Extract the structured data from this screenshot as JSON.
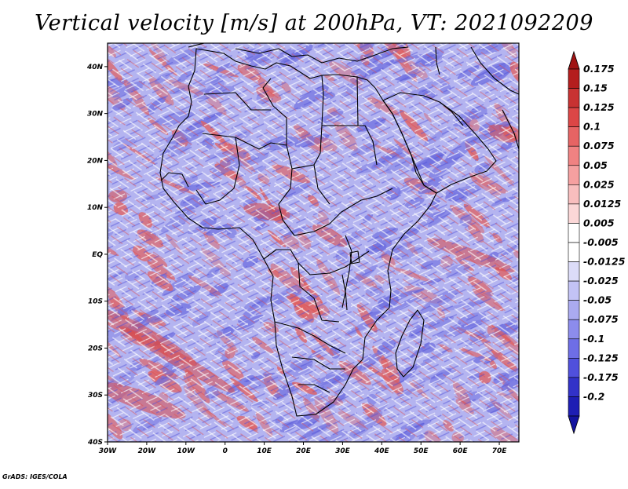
{
  "title": "Vertical velocity [m/s] at 200hPa, VT: 2021092209",
  "credit": "GrADS: IGES/COLA",
  "map": {
    "lon_range": [
      -30,
      75
    ],
    "lat_range": [
      -40,
      45
    ],
    "lat_ticks": [
      {
        "value": 40,
        "label": "40N"
      },
      {
        "value": 30,
        "label": "30N"
      },
      {
        "value": 20,
        "label": "20N"
      },
      {
        "value": 10,
        "label": "10N"
      },
      {
        "value": 0,
        "label": "EQ"
      },
      {
        "value": -10,
        "label": "10S"
      },
      {
        "value": -20,
        "label": "20S"
      },
      {
        "value": -30,
        "label": "30S"
      },
      {
        "value": -40,
        "label": "40S"
      }
    ],
    "lon_ticks": [
      {
        "value": -30,
        "label": "30W"
      },
      {
        "value": -20,
        "label": "20W"
      },
      {
        "value": -10,
        "label": "10W"
      },
      {
        "value": 0,
        "label": "0"
      },
      {
        "value": 10,
        "label": "10E"
      },
      {
        "value": 20,
        "label": "20E"
      },
      {
        "value": 30,
        "label": "30E"
      },
      {
        "value": 40,
        "label": "40E"
      },
      {
        "value": 50,
        "label": "50E"
      },
      {
        "value": 60,
        "label": "60E"
      },
      {
        "value": 70,
        "label": "70E"
      }
    ]
  },
  "colorbar": {
    "levels": [
      {
        "label": "0.175",
        "color": "#b41e1e"
      },
      {
        "label": "0.15",
        "color": "#c83232"
      },
      {
        "label": "0.125",
        "color": "#dc4646"
      },
      {
        "label": "0.1",
        "color": "#e66464"
      },
      {
        "label": "0.075",
        "color": "#f08282"
      },
      {
        "label": "0.05",
        "color": "#f5a0a0"
      },
      {
        "label": "0.025",
        "color": "#f8bebe"
      },
      {
        "label": "0.0125",
        "color": "#fbd7d7"
      },
      {
        "label": "0.005",
        "color": "#ffffff"
      },
      {
        "label": "-0.005",
        "color": "#ffffff"
      },
      {
        "label": "-0.0125",
        "color": "#dcdcf8"
      },
      {
        "label": "-0.025",
        "color": "#c3c3f5"
      },
      {
        "label": "-0.05",
        "color": "#aaaaf0"
      },
      {
        "label": "-0.075",
        "color": "#8c8cec"
      },
      {
        "label": "-0.1",
        "color": "#6e6ee6"
      },
      {
        "label": "-0.125",
        "color": "#5050dc"
      },
      {
        "label": "-0.175",
        "color": "#3232c8"
      },
      {
        "label": "-0.2",
        "color": "#1e1eb4"
      }
    ],
    "top_color": "#a01414",
    "bottom_color": "#1414a0"
  },
  "colors": {
    "field_red": "#e06060",
    "field_blue": "#7070e0",
    "coastline": "#000000"
  }
}
